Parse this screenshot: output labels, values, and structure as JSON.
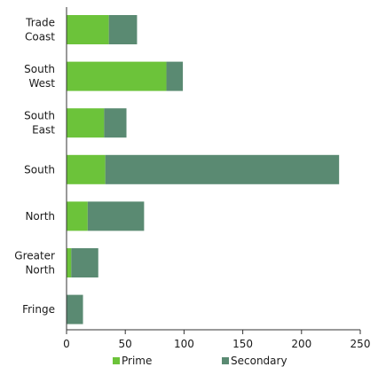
{
  "chart_data": {
    "type": "bar",
    "orientation": "horizontal",
    "stacked": true,
    "title": "",
    "xlabel": "",
    "ylabel": "",
    "categories": [
      [
        "Trade",
        "Coast"
      ],
      [
        "South",
        "West"
      ],
      [
        "South",
        "East"
      ],
      [
        "South"
      ],
      [
        "North"
      ],
      [
        "Greater",
        "North"
      ],
      [
        "Fringe"
      ]
    ],
    "series": [
      {
        "name": "Prime",
        "color": "#6cc33a",
        "values": [
          36,
          85,
          32,
          33,
          18,
          4,
          0
        ]
      },
      {
        "name": "Secondary",
        "color": "#5a8a72",
        "values": [
          24,
          14,
          19,
          199,
          48,
          23,
          14
        ]
      }
    ],
    "xlim": [
      0,
      250
    ],
    "xticks": [
      "0",
      "50",
      "100",
      "150",
      "200",
      "250"
    ],
    "grid": false,
    "legend": "bottom"
  }
}
